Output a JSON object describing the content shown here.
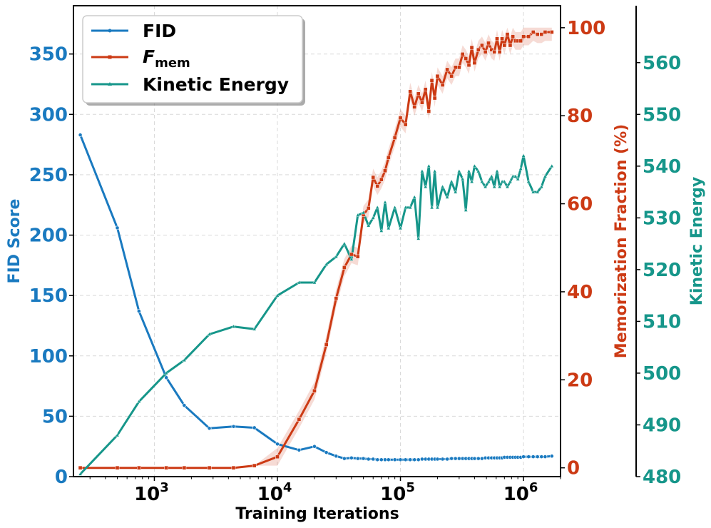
{
  "chart_data": {
    "type": "line",
    "xscale": "log",
    "xlim": [
      220,
      2000000
    ],
    "xlabel": "Training Iterations",
    "xticks": [
      {
        "value": 1000,
        "base": "10",
        "exp": "3"
      },
      {
        "value": 10000,
        "base": "10",
        "exp": "4"
      },
      {
        "value": 100000,
        "base": "10",
        "exp": "5"
      },
      {
        "value": 1000000,
        "base": "10",
        "exp": "6"
      }
    ],
    "axes": {
      "fid": {
        "label": "FID Score",
        "ylim": [
          0,
          390
        ],
        "ticks": [
          "0",
          "50",
          "100",
          "150",
          "200",
          "250",
          "300",
          "350"
        ],
        "color": "#1a7ac0"
      },
      "mem": {
        "label": "Memorization Fraction (%)",
        "ylim": [
          -2,
          105
        ],
        "ticks": [
          "0",
          "20",
          "40",
          "60",
          "80",
          "100"
        ],
        "color": "#cc3a14"
      },
      "ke": {
        "label": "Kinetic Energy",
        "ylim": [
          480,
          571
        ],
        "ticks": [
          "480",
          "490",
          "500",
          "510",
          "520",
          "530",
          "540",
          "550",
          "560"
        ],
        "color": "#16968a"
      }
    },
    "grid": true,
    "legend": {
      "position": "top-left",
      "entries": [
        {
          "label": "FID",
          "key": "fid"
        },
        {
          "label_main": "F",
          "label_sub": "mem",
          "key": "mem"
        },
        {
          "label": "Kinetic Energy",
          "key": "ke"
        }
      ]
    },
    "series": [
      {
        "name": "FID",
        "axis": "fid",
        "color": "#1a7ac0",
        "marker": "circle",
        "x": [
          250,
          500,
          750,
          1250,
          1750,
          2800,
          4400,
          6500,
          10000,
          15000,
          20000,
          25000,
          30000,
          35000,
          40000,
          45000,
          50000,
          55000,
          60000,
          65000,
          70000,
          75000,
          80000,
          90000,
          100000,
          110000,
          120000,
          130000,
          140000,
          150000,
          160000,
          170000,
          180000,
          190000,
          200000,
          220000,
          240000,
          260000,
          280000,
          300000,
          320000,
          340000,
          360000,
          380000,
          400000,
          430000,
          460000,
          490000,
          520000,
          550000,
          580000,
          610000,
          640000,
          670000,
          700000,
          740000,
          780000,
          820000,
          860000,
          900000,
          950000,
          1000000,
          1100000,
          1200000,
          1300000,
          1400000,
          1500000,
          1700000
        ],
        "y": [
          283,
          206,
          137,
          82,
          59,
          40,
          41.5,
          40.5,
          27,
          22,
          25,
          20,
          17,
          15,
          15.5,
          15,
          15,
          14.5,
          14.5,
          14,
          14,
          14,
          14,
          14,
          14,
          14,
          14,
          14,
          14,
          14.5,
          14.5,
          14.5,
          14.5,
          14.5,
          14.5,
          14.5,
          14.5,
          15,
          15,
          15,
          15,
          15,
          15,
          15,
          15,
          15,
          15,
          15.5,
          15.5,
          15.5,
          15.5,
          15.5,
          15.5,
          15.5,
          16,
          16,
          16,
          16,
          16,
          16,
          16,
          16.5,
          16.5,
          16.5,
          16.5,
          16.5,
          16.5,
          17
        ]
      },
      {
        "name": "F_mem",
        "axis": "mem",
        "color": "#cc3a14",
        "marker": "square",
        "x": [
          250,
          500,
          750,
          1250,
          1750,
          2800,
          4400,
          6500,
          10000,
          15000,
          20000,
          25000,
          30000,
          35000,
          40000,
          45000,
          50000,
          55000,
          60000,
          65000,
          70000,
          75000,
          80000,
          90000,
          100000,
          110000,
          120000,
          130000,
          140000,
          150000,
          160000,
          170000,
          180000,
          190000,
          200000,
          220000,
          240000,
          260000,
          280000,
          300000,
          320000,
          340000,
          360000,
          380000,
          400000,
          430000,
          460000,
          490000,
          520000,
          550000,
          580000,
          610000,
          640000,
          670000,
          700000,
          740000,
          780000,
          820000,
          860000,
          900000,
          950000,
          1000000,
          1100000,
          1200000,
          1300000,
          1400000,
          1500000,
          1700000
        ],
        "y": [
          0,
          0,
          0,
          0,
          0,
          0,
          0,
          0.5,
          2.5,
          11,
          17.5,
          28,
          38.5,
          45.5,
          48.5,
          48,
          57.5,
          59,
          66,
          64,
          65.5,
          67.5,
          70.5,
          75,
          79.5,
          78,
          85.5,
          82,
          85,
          83,
          86,
          81,
          88,
          84,
          89,
          87,
          90.5,
          89,
          91,
          91,
          94,
          93,
          91.5,
          95.5,
          92,
          95,
          96,
          94.5,
          96.5,
          95,
          94.5,
          97.5,
          94.5,
          97.5,
          96,
          98.5,
          96,
          98,
          97,
          97,
          97,
          98,
          98,
          99,
          98.5,
          98.5,
          99,
          99
        ]
      },
      {
        "name": "Kinetic Energy",
        "axis": "ke",
        "color": "#16968a",
        "marker": "triangle",
        "x": [
          250,
          500,
          750,
          1250,
          1750,
          2800,
          4400,
          6500,
          10000,
          15000,
          20000,
          25000,
          30000,
          35000,
          40000,
          45000,
          50000,
          55000,
          60000,
          65000,
          70000,
          75000,
          80000,
          90000,
          100000,
          110000,
          120000,
          130000,
          140000,
          150000,
          160000,
          170000,
          180000,
          190000,
          200000,
          220000,
          240000,
          260000,
          280000,
          300000,
          320000,
          340000,
          360000,
          380000,
          400000,
          430000,
          460000,
          490000,
          520000,
          550000,
          580000,
          610000,
          640000,
          670000,
          700000,
          740000,
          780000,
          820000,
          860000,
          900000,
          950000,
          1000000,
          1100000,
          1200000,
          1300000,
          1400000,
          1500000,
          1700000
        ],
        "y": [
          480.5,
          488,
          494.5,
          500,
          502.5,
          507.5,
          509,
          508.5,
          515,
          517.5,
          517.5,
          521,
          522.5,
          525,
          522,
          530.5,
          531,
          528.5,
          530,
          532,
          527.5,
          533,
          528,
          532,
          528,
          532,
          532,
          534,
          526,
          539,
          536,
          540,
          532,
          539,
          532,
          536,
          534,
          537,
          535,
          539,
          537.5,
          531.5,
          539,
          537,
          540,
          539,
          537,
          536,
          537,
          538,
          536,
          539,
          536,
          537,
          537,
          536,
          537,
          538,
          538,
          537.5,
          539.5,
          542,
          537,
          535,
          535,
          536,
          538,
          540
        ]
      }
    ]
  }
}
